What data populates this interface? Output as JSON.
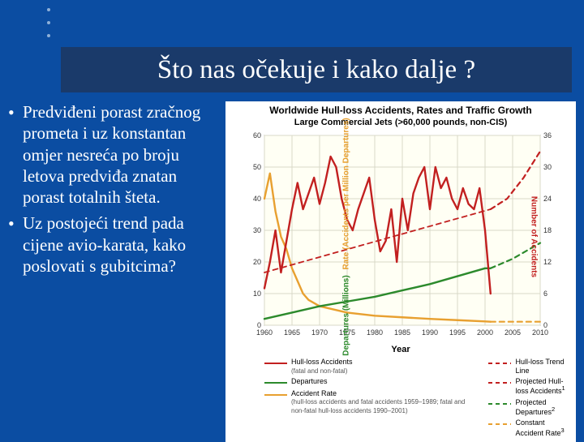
{
  "slide": {
    "background": "#0b4da2",
    "title_bg": "#1a3a6a",
    "title": "Što nas očekuje i kako dalje ?",
    "bullets": [
      "Predviđeni porast zračnog prometa i uz konstantan omjer nesreća po broju letova predviđa znatan porast totalnih šteta.",
      "Uz postojeći trend pada cijene avio-karata, kako poslovati s gubitcima?"
    ]
  },
  "chart": {
    "type": "multi-axis-line",
    "title_line1": "Worldwide Hull-loss Accidents, Rates and Traffic Growth",
    "title_line2": "Large Commercial Jets (>60,000 pounds, non-CIS)",
    "background": "#fffff0",
    "plot_bg": "#fffff4",
    "grid_color": "#d8d8c8",
    "axis_color": "#808070",
    "x": {
      "label": "Year",
      "min": 1960,
      "max": 2010,
      "ticks": [
        1960,
        1965,
        1970,
        1975,
        1980,
        1985,
        1990,
        1995,
        2000,
        2005,
        2010
      ],
      "tick_fontsize": 9
    },
    "y_left": {
      "label_dep": "Departures (Millions)",
      "label_rate": "Rate (Accidents per Million Departures)",
      "color_dep": "#2c8a2c",
      "color_rate": "#e8a030",
      "min": 0,
      "max": 60,
      "ticks": [
        0,
        10,
        20,
        30,
        40,
        50,
        60
      ],
      "tick_fontsize": 9
    },
    "y_right": {
      "label": "Number of Accidents",
      "color": "#c22020",
      "min": 0,
      "max": 36,
      "ticks": [
        0,
        6,
        12,
        18,
        24,
        30,
        36
      ],
      "tick_fontsize": 9
    },
    "series": {
      "accidents": {
        "name": "Hull-loss Accidents",
        "sub": "(fatal and non-fatal)",
        "axis": "right",
        "color": "#c22020",
        "width": 2.4,
        "style": "solid",
        "data": [
          [
            1960,
            7
          ],
          [
            1961,
            12
          ],
          [
            1962,
            18
          ],
          [
            1963,
            10
          ],
          [
            1964,
            16
          ],
          [
            1965,
            22
          ],
          [
            1966,
            27
          ],
          [
            1967,
            22
          ],
          [
            1968,
            25
          ],
          [
            1969,
            28
          ],
          [
            1970,
            23
          ],
          [
            1971,
            27
          ],
          [
            1972,
            32
          ],
          [
            1973,
            30
          ],
          [
            1974,
            24
          ],
          [
            1975,
            20
          ],
          [
            1976,
            18
          ],
          [
            1977,
            22
          ],
          [
            1978,
            25
          ],
          [
            1979,
            28
          ],
          [
            1980,
            20
          ],
          [
            1981,
            14
          ],
          [
            1982,
            16
          ],
          [
            1983,
            22
          ],
          [
            1984,
            12
          ],
          [
            1985,
            24
          ],
          [
            1986,
            18
          ],
          [
            1987,
            25
          ],
          [
            1988,
            28
          ],
          [
            1989,
            30
          ],
          [
            1990,
            22
          ],
          [
            1991,
            30
          ],
          [
            1992,
            26
          ],
          [
            1993,
            28
          ],
          [
            1994,
            24
          ],
          [
            1995,
            22
          ],
          [
            1996,
            26
          ],
          [
            1997,
            23
          ],
          [
            1998,
            22
          ],
          [
            1999,
            26
          ],
          [
            2000,
            18
          ],
          [
            2001,
            6
          ]
        ]
      },
      "accidents_trend": {
        "name": "Hull-loss Trend Line",
        "axis": "right",
        "color": "#c22020",
        "width": 1.8,
        "style": "dash",
        "data": [
          [
            1960,
            10
          ],
          [
            2001,
            22
          ]
        ]
      },
      "accidents_proj": {
        "name": "Projected Hull-loss Accidents",
        "superscript": "1",
        "axis": "right",
        "color": "#c22020",
        "width": 2.2,
        "style": "dash",
        "data": [
          [
            2001,
            22
          ],
          [
            2004,
            24
          ],
          [
            2007,
            28
          ],
          [
            2010,
            33
          ]
        ]
      },
      "departures": {
        "name": "Departures",
        "axis": "left",
        "color": "#2c8a2c",
        "width": 2.4,
        "style": "solid",
        "data": [
          [
            1960,
            2
          ],
          [
            1965,
            4
          ],
          [
            1970,
            6
          ],
          [
            1975,
            7.5
          ],
          [
            1980,
            9
          ],
          [
            1985,
            11
          ],
          [
            1990,
            13
          ],
          [
            1995,
            15.5
          ],
          [
            2000,
            18
          ],
          [
            2001,
            18
          ]
        ]
      },
      "departures_proj": {
        "name": "Projected Departures",
        "superscript": "2",
        "axis": "left",
        "color": "#2c8a2c",
        "width": 2.2,
        "style": "dash",
        "data": [
          [
            2001,
            18
          ],
          [
            2005,
            21
          ],
          [
            2010,
            26
          ]
        ]
      },
      "rate": {
        "name": "Accident Rate",
        "sub": "(hull-loss accidents and fatal accidents 1959–1989; fatal and non-fatal hull-loss accidents 1990–2001)",
        "axis": "left",
        "color": "#e8a030",
        "width": 2.4,
        "style": "solid",
        "data": [
          [
            1960,
            40
          ],
          [
            1961,
            48
          ],
          [
            1962,
            36
          ],
          [
            1963,
            28
          ],
          [
            1964,
            24
          ],
          [
            1965,
            18
          ],
          [
            1966,
            14
          ],
          [
            1967,
            10
          ],
          [
            1968,
            8
          ],
          [
            1970,
            6
          ],
          [
            1975,
            4
          ],
          [
            1980,
            3
          ],
          [
            1985,
            2.5
          ],
          [
            1990,
            2
          ],
          [
            1995,
            1.6
          ],
          [
            2000,
            1.2
          ],
          [
            2001,
            1.1
          ]
        ]
      },
      "rate_proj": {
        "name": "Constant Accident Rate",
        "superscript": "3",
        "axis": "left",
        "color": "#e8a030",
        "width": 2.2,
        "style": "dash",
        "data": [
          [
            2001,
            1.1
          ],
          [
            2010,
            1.1
          ]
        ]
      }
    },
    "legend_cols": [
      [
        "accidents",
        "departures",
        "rate"
      ],
      [
        "accidents_trend",
        "accidents_proj",
        "departures_proj",
        "rate_proj"
      ]
    ]
  }
}
